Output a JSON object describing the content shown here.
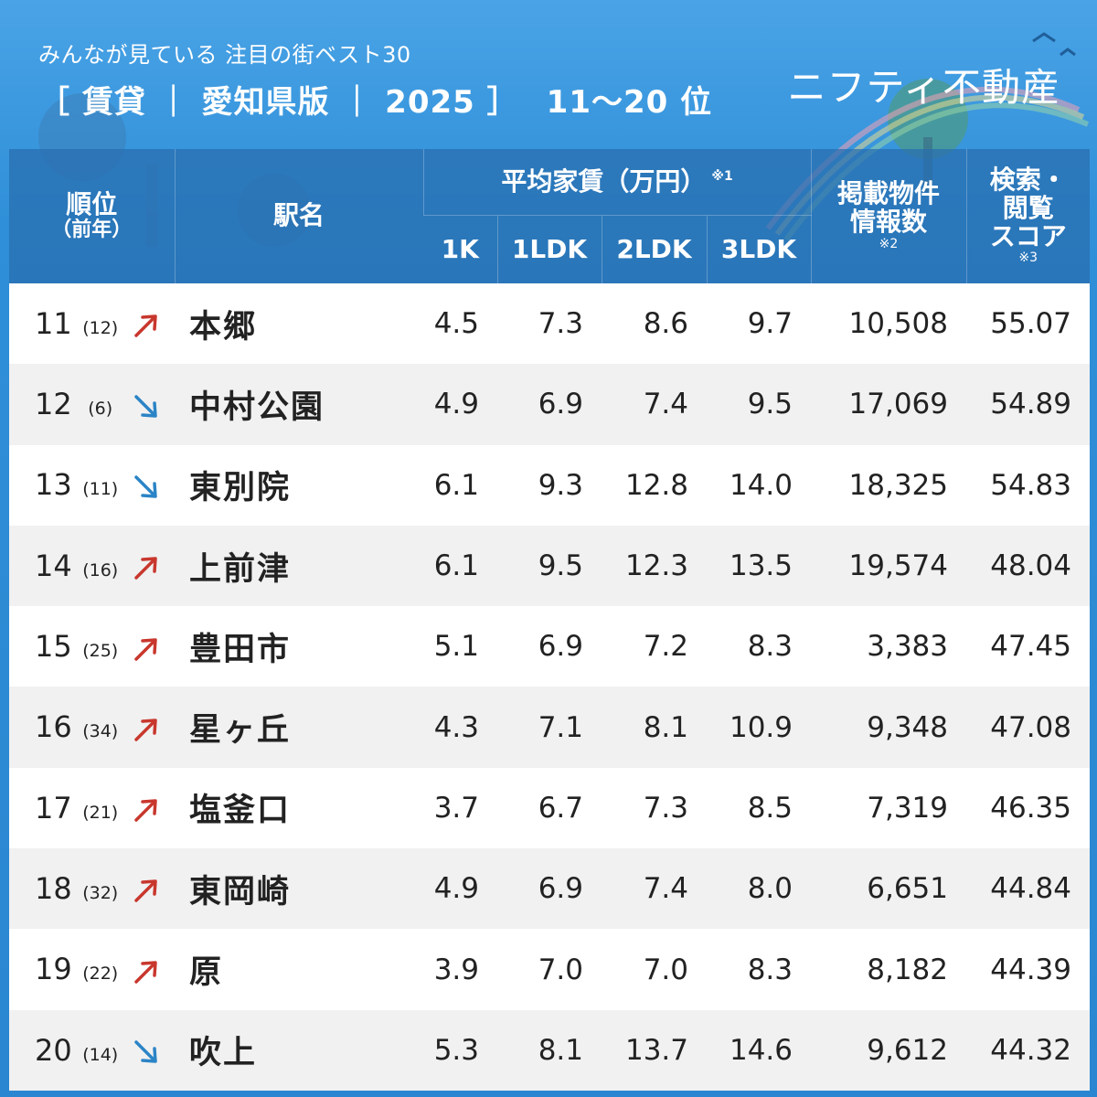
{
  "header": {
    "subtitle": "みんなが見ている 注目の街ベスト30",
    "title": "［ 賃貸 ｜ 愛知県版 ｜ 2025 ］",
    "range": "11〜20 位",
    "brand": "ニフティ不動産"
  },
  "columns": {
    "rank": "順位",
    "rank_prev": "（前年）",
    "station": "駅名",
    "rent": "平均家賃（万円）",
    "rent_note": "※1",
    "k1": "1K",
    "ldk1": "1LDK",
    "ldk2": "2LDK",
    "ldk3": "3LDK",
    "listings_1": "掲載物件",
    "listings_2": "情報数",
    "listings_note": "※2",
    "score_1": "検索・",
    "score_2": "閲覧",
    "score_3": "スコア",
    "score_note": "※3"
  },
  "colors": {
    "up": "#c8372d",
    "down": "#2b84c6"
  },
  "chart_data": {
    "type": "table",
    "rows": [
      {
        "rank": "11",
        "prev": "(12)",
        "trend": "up",
        "station": "本郷",
        "k1": "4.5",
        "ldk1": "7.3",
        "ldk2": "8.6",
        "ldk3": "9.7",
        "listings": "10,508",
        "score": "55.07"
      },
      {
        "rank": "12",
        "prev": "(6)",
        "trend": "down",
        "station": "中村公園",
        "k1": "4.9",
        "ldk1": "6.9",
        "ldk2": "7.4",
        "ldk3": "9.5",
        "listings": "17,069",
        "score": "54.89"
      },
      {
        "rank": "13",
        "prev": "(11)",
        "trend": "down",
        "station": "東別院",
        "k1": "6.1",
        "ldk1": "9.3",
        "ldk2": "12.8",
        "ldk3": "14.0",
        "listings": "18,325",
        "score": "54.83"
      },
      {
        "rank": "14",
        "prev": "(16)",
        "trend": "up",
        "station": "上前津",
        "k1": "6.1",
        "ldk1": "9.5",
        "ldk2": "12.3",
        "ldk3": "13.5",
        "listings": "19,574",
        "score": "48.04"
      },
      {
        "rank": "15",
        "prev": "(25)",
        "trend": "up",
        "station": "豊田市",
        "k1": "5.1",
        "ldk1": "6.9",
        "ldk2": "7.2",
        "ldk3": "8.3",
        "listings": "3,383",
        "score": "47.45"
      },
      {
        "rank": "16",
        "prev": "(34)",
        "trend": "up",
        "station": "星ヶ丘",
        "k1": "4.3",
        "ldk1": "7.1",
        "ldk2": "8.1",
        "ldk3": "10.9",
        "listings": "9,348",
        "score": "47.08"
      },
      {
        "rank": "17",
        "prev": "(21)",
        "trend": "up",
        "station": "塩釜口",
        "k1": "3.7",
        "ldk1": "6.7",
        "ldk2": "7.3",
        "ldk3": "8.5",
        "listings": "7,319",
        "score": "46.35"
      },
      {
        "rank": "18",
        "prev": "(32)",
        "trend": "up",
        "station": "東岡崎",
        "k1": "4.9",
        "ldk1": "6.9",
        "ldk2": "7.4",
        "ldk3": "8.0",
        "listings": "6,651",
        "score": "44.84"
      },
      {
        "rank": "19",
        "prev": "(22)",
        "trend": "up",
        "station": "原",
        "k1": "3.9",
        "ldk1": "7.0",
        "ldk2": "7.0",
        "ldk3": "8.3",
        "listings": "8,182",
        "score": "44.39"
      },
      {
        "rank": "20",
        "prev": "(14)",
        "trend": "down",
        "station": "吹上",
        "k1": "5.3",
        "ldk1": "8.1",
        "ldk2": "13.7",
        "ldk3": "14.6",
        "listings": "9,612",
        "score": "44.32"
      }
    ]
  }
}
